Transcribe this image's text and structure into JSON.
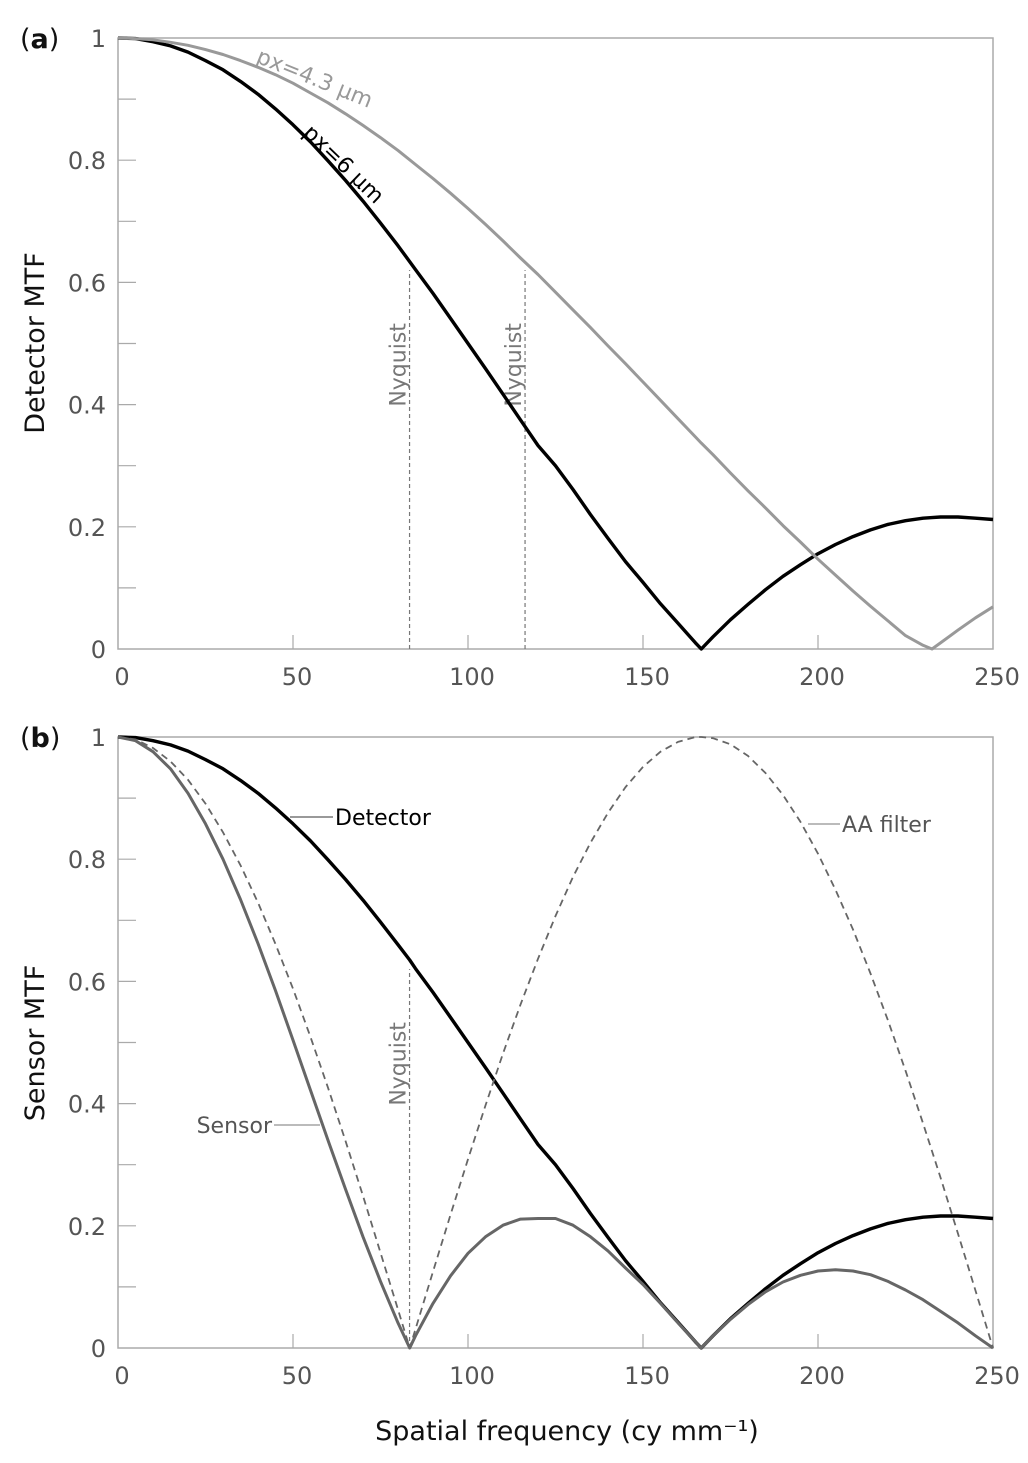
{
  "chart_data": [
    {
      "type": "line",
      "panel_label": "(a)",
      "panel_letter": "a",
      "xlabel": "",
      "ylabel": "Detector MTF",
      "xlim": [
        0,
        250
      ],
      "ylim": [
        0,
        1
      ],
      "xticks": [
        "0",
        "50",
        "100",
        "150",
        "200",
        "250"
      ],
      "xtick_values": [
        0,
        50,
        100,
        150,
        200,
        250
      ],
      "yticks": [
        "0",
        "0.2",
        "0.4",
        "0.6",
        "0.8",
        "1"
      ],
      "ytick_values": [
        0,
        0.2,
        0.4,
        0.6,
        0.8,
        1
      ],
      "yminor_values": [
        0.1,
        0.3,
        0.5,
        0.7,
        0.9
      ],
      "grid": false,
      "x": [
        0,
        5,
        10,
        15,
        20,
        25,
        30,
        35,
        40,
        45,
        50,
        55,
        60,
        65,
        70,
        75,
        80,
        85,
        90,
        95,
        100,
        105,
        110,
        115,
        120,
        125,
        130,
        135,
        140,
        145,
        150,
        155,
        160,
        165,
        166.67,
        170,
        175,
        180,
        185,
        190,
        195,
        200,
        205,
        210,
        215,
        220,
        225,
        230,
        232.56,
        235,
        240,
        245,
        250
      ],
      "series": [
        {
          "name": "px=6 µm",
          "label": "px=6 µm",
          "color": "#000000",
          "style": "solid",
          "values": [
            1,
            0.999,
            0.994,
            0.987,
            0.977,
            0.963,
            0.948,
            0.929,
            0.908,
            0.884,
            0.858,
            0.83,
            0.799,
            0.767,
            0.733,
            0.697,
            0.66,
            0.621,
            0.582,
            0.541,
            0.5,
            0.459,
            0.417,
            0.375,
            0.333,
            0.3,
            0.261,
            0.22,
            0.181,
            0.143,
            0.109,
            0.074,
            0.042,
            0.01,
            0,
            0.02,
            0.048,
            0.073,
            0.097,
            0.119,
            0.138,
            0.156,
            0.171,
            0.184,
            0.195,
            0.204,
            0.21,
            0.214,
            0.215,
            0.216,
            0.216,
            0.214,
            0.212
          ]
        },
        {
          "name": "px=4.3 µm",
          "label": "px=4.3 µm",
          "color": "#999999",
          "style": "solid",
          "values": [
            1,
            0.999,
            0.997,
            0.993,
            0.988,
            0.981,
            0.973,
            0.963,
            0.952,
            0.94,
            0.926,
            0.91,
            0.894,
            0.876,
            0.857,
            0.837,
            0.816,
            0.793,
            0.77,
            0.746,
            0.721,
            0.695,
            0.668,
            0.64,
            0.613,
            0.584,
            0.555,
            0.526,
            0.496,
            0.467,
            0.437,
            0.407,
            0.377,
            0.347,
            0.337,
            0.318,
            0.288,
            0.259,
            0.231,
            0.202,
            0.175,
            0.147,
            0.121,
            0.095,
            0.07,
            0.046,
            0.022,
            0.006,
            0,
            0.01,
            0.031,
            0.051,
            0.069
          ]
        }
      ],
      "annotations": [
        {
          "text": "Nyquist",
          "x": 83.3
        },
        {
          "text": "Nyquist",
          "x": 116.3
        }
      ]
    },
    {
      "type": "line",
      "panel_label": "(b)",
      "panel_letter": "b",
      "xlabel": "Spatial frequency (cy mm⁻¹)",
      "ylabel": "Sensor MTF",
      "xlim": [
        0,
        250
      ],
      "ylim": [
        0,
        1
      ],
      "xticks": [
        "0",
        "50",
        "100",
        "150",
        "200",
        "250"
      ],
      "xtick_values": [
        0,
        50,
        100,
        150,
        200,
        250
      ],
      "yticks": [
        "0",
        "0.2",
        "0.4",
        "0.6",
        "0.8",
        "1"
      ],
      "ytick_values": [
        0,
        0.2,
        0.4,
        0.6,
        0.8,
        1
      ],
      "yminor_values": [
        0.1,
        0.3,
        0.5,
        0.7,
        0.9
      ],
      "grid": false,
      "x": [
        0,
        5,
        10,
        15,
        20,
        25,
        30,
        35,
        40,
        45,
        50,
        55,
        60,
        65,
        70,
        75,
        80,
        83.33,
        85,
        90,
        95,
        100,
        105,
        110,
        115,
        120,
        125,
        130,
        135,
        140,
        145,
        150,
        155,
        160,
        165,
        166.67,
        170,
        175,
        180,
        185,
        190,
        195,
        200,
        205,
        210,
        215,
        220,
        225,
        230,
        235,
        240,
        245,
        250
      ],
      "series": [
        {
          "name": "Detector",
          "label": "Detector",
          "color": "#000000",
          "style": "solid",
          "values": [
            1,
            0.999,
            0.994,
            0.987,
            0.977,
            0.963,
            0.948,
            0.929,
            0.908,
            0.884,
            0.858,
            0.83,
            0.799,
            0.767,
            0.733,
            0.697,
            0.66,
            0.635,
            0.621,
            0.582,
            0.541,
            0.5,
            0.459,
            0.417,
            0.375,
            0.333,
            0.3,
            0.261,
            0.22,
            0.181,
            0.143,
            0.109,
            0.074,
            0.042,
            0.01,
            0,
            0.02,
            0.048,
            0.073,
            0.097,
            0.119,
            0.138,
            0.156,
            0.171,
            0.184,
            0.195,
            0.204,
            0.21,
            0.214,
            0.216,
            0.216,
            0.214,
            0.212
          ]
        },
        {
          "name": "AA filter",
          "label": "AA filter",
          "color": "#666666",
          "style": "dashed",
          "values": [
            1,
            0.996,
            0.982,
            0.96,
            0.93,
            0.891,
            0.844,
            0.79,
            0.729,
            0.661,
            0.588,
            0.509,
            0.426,
            0.339,
            0.249,
            0.156,
            0.063,
            0,
            0.031,
            0.125,
            0.218,
            0.309,
            0.397,
            0.482,
            0.562,
            0.637,
            0.707,
            0.771,
            0.827,
            0.876,
            0.918,
            0.951,
            0.976,
            0.992,
            1.0,
            1,
            0.998,
            0.988,
            0.969,
            0.941,
            0.905,
            0.861,
            0.809,
            0.75,
            0.685,
            0.613,
            0.536,
            0.454,
            0.368,
            0.279,
            0.187,
            0.094,
            0
          ]
        },
        {
          "name": "Sensor",
          "label": "Sensor",
          "color": "#666666",
          "style": "solid",
          "values": [
            1,
            0.994,
            0.976,
            0.948,
            0.908,
            0.858,
            0.8,
            0.734,
            0.662,
            0.585,
            0.504,
            0.422,
            0.34,
            0.26,
            0.182,
            0.109,
            0.041,
            0,
            0.02,
            0.073,
            0.118,
            0.155,
            0.182,
            0.201,
            0.211,
            0.212,
            0.212,
            0.201,
            0.182,
            0.159,
            0.131,
            0.104,
            0.073,
            0.041,
            0.01,
            0,
            0.02,
            0.047,
            0.071,
            0.092,
            0.108,
            0.119,
            0.126,
            0.128,
            0.126,
            0.12,
            0.109,
            0.095,
            0.079,
            0.06,
            0.041,
            0.02,
            0
          ]
        }
      ],
      "annotations": [
        {
          "text": "Nyquist",
          "x": 83.3
        }
      ]
    }
  ]
}
